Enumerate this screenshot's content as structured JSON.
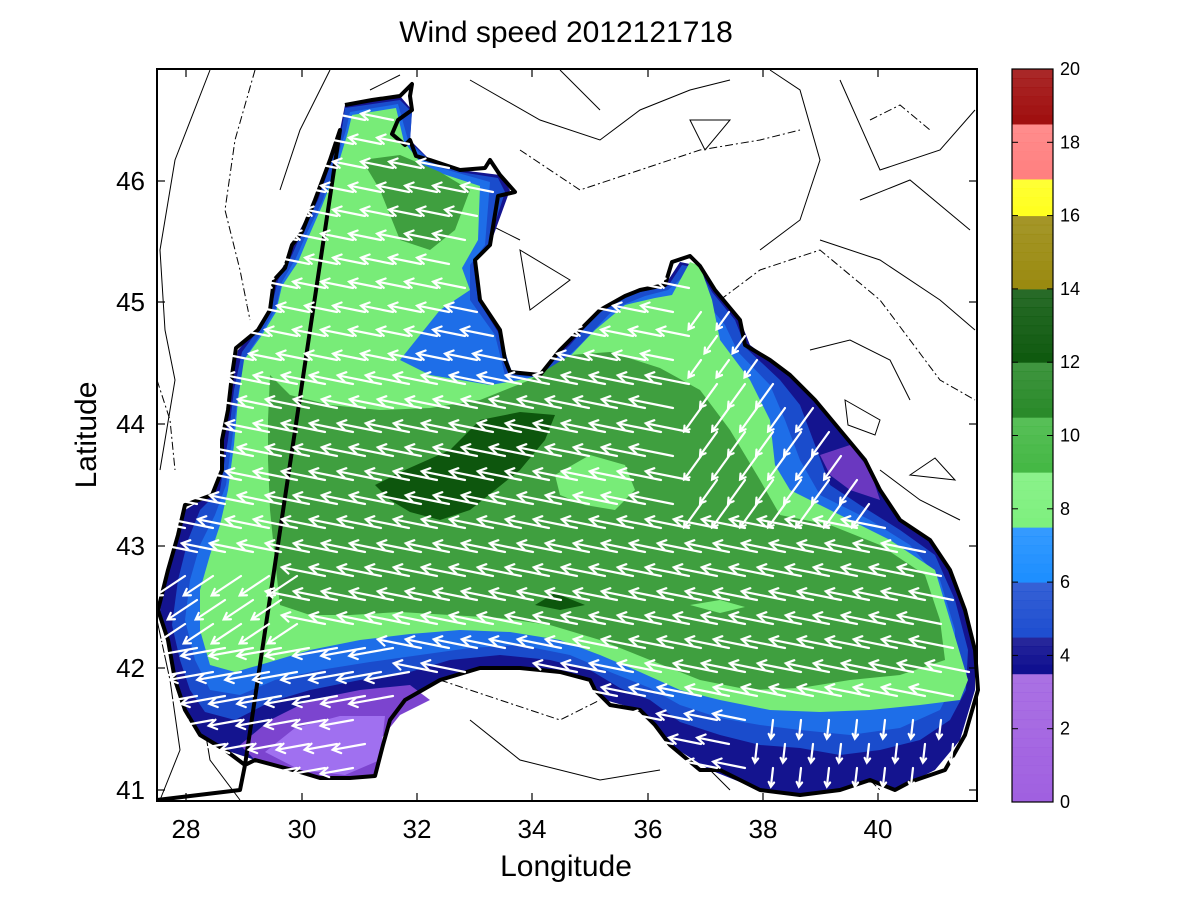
{
  "title": "Wind speed 2012121718",
  "axes": {
    "xlabel": "Longitude",
    "ylabel": "Latitude",
    "xlim": [
      27.5,
      41.7
    ],
    "ylim": [
      40.9,
      46.9
    ],
    "xticks": [
      "28",
      "30",
      "32",
      "34",
      "36",
      "38",
      "40"
    ],
    "yticks": [
      "41",
      "42",
      "43",
      "44",
      "45",
      "46"
    ]
  },
  "colorbar": {
    "min": 0,
    "max": 20,
    "ticks": [
      "0",
      "2",
      "4",
      "6",
      "8",
      "10",
      "12",
      "14",
      "16",
      "18",
      "20"
    ],
    "bands": [
      {
        "from": 0,
        "to": 3.5,
        "color": "#a060e0"
      },
      {
        "from": 3.5,
        "to": 4.5,
        "color": "#101090"
      },
      {
        "from": 4.5,
        "to": 6.0,
        "color": "#1f4fd0"
      },
      {
        "from": 6.0,
        "to": 7.5,
        "color": "#1e8fff"
      },
      {
        "from": 7.5,
        "to": 9.0,
        "color": "#7ef07e"
      },
      {
        "from": 9.0,
        "to": 10.5,
        "color": "#45b845"
      },
      {
        "from": 10.5,
        "to": 12.0,
        "color": "#2a8a2a"
      },
      {
        "from": 12.0,
        "to": 14.0,
        "color": "#0f5a0f"
      },
      {
        "from": 14.0,
        "to": 16.0,
        "color": "#9a8a10"
      },
      {
        "from": 16.0,
        "to": 17.0,
        "color": "#ffff20"
      },
      {
        "from": 17.0,
        "to": 18.5,
        "color": "#ff8080"
      },
      {
        "from": 18.5,
        "to": 20.0,
        "color": "#a01010"
      }
    ]
  },
  "colors": {
    "land_bg": "#ffffff",
    "coast": "#000000",
    "arrow": "#ffffff",
    "speed_lt4": "#9c5ee8",
    "speed_4_5": "#14148f",
    "speed_5_6": "#1a4ccc",
    "speed_6_7": "#1e6ee8",
    "speed_7_9": "#78ec78",
    "speed_9_11": "#3f9f3f",
    "speed_gt11": "#0d560d"
  },
  "map_extent": {
    "lon": [
      27.5,
      41.7
    ],
    "lat": [
      40.9,
      46.9
    ]
  },
  "vector_field": {
    "description": "wind vectors pointing roughly westward over the sea",
    "dominant_direction_deg": 200
  }
}
